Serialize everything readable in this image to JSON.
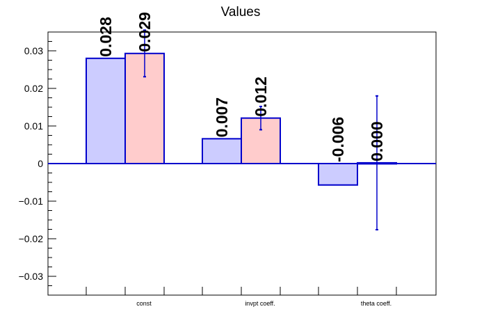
{
  "colors": {
    "bar_a_fill": "#ccccff",
    "bar_b_fill": "#ffcccc",
    "bar_stroke": "#0000cc",
    "error_bar": "#0000cc",
    "axis": "#000000",
    "background": "#ffffff"
  },
  "chart_data": {
    "type": "bar",
    "title": "Values",
    "xlabel": "",
    "ylabel": "",
    "categories": [
      "const",
      "invpt coeff.",
      "theta coeff."
    ],
    "ylim": [
      -0.035,
      0.035
    ],
    "yticks": [
      -0.03,
      -0.02,
      -0.01,
      0,
      0.01,
      0.02,
      0.03
    ],
    "ytick_labels": [
      "−0.03",
      "−0.02",
      "−0.01",
      "0",
      "0.01",
      "0.02",
      "0.03"
    ],
    "grid": false,
    "legend": "none",
    "series": [
      {
        "values": [
          0.028,
          0.0066,
          -0.0057
        ],
        "labels": [
          "0.028",
          "0.007",
          "-0.006"
        ],
        "errors": [
          null,
          null,
          null
        ]
      },
      {
        "values": [
          0.0293,
          0.0121,
          0.0002
        ],
        "labels": [
          "0.029",
          "0.012",
          "0.000"
        ],
        "errors": [
          0.0062,
          0.0031,
          0.0178
        ]
      }
    ]
  }
}
